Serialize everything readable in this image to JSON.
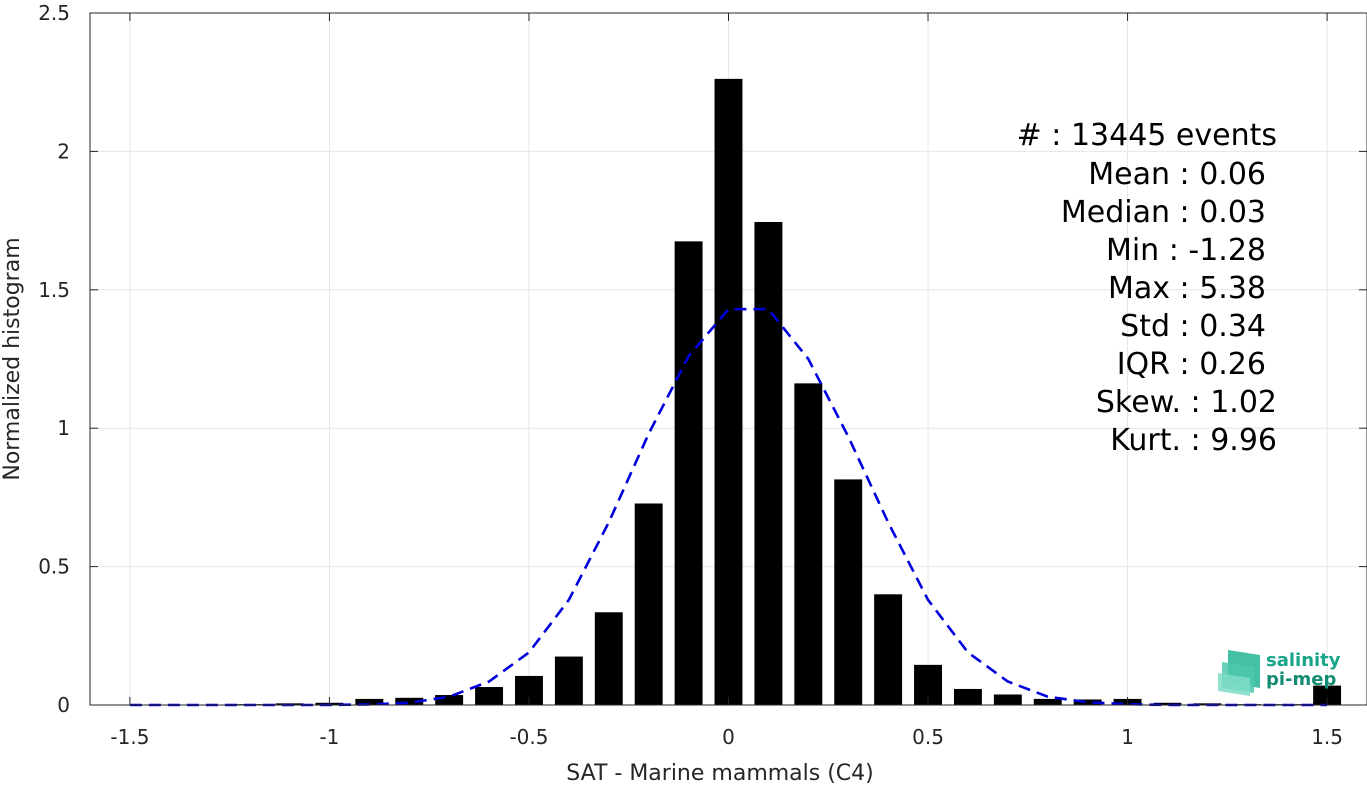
{
  "chart_data": {
    "type": "bar",
    "xlabel": "SAT - Marine mammals (C4)",
    "ylabel": "Normalized histogram",
    "xlim": [
      -1.6,
      1.6
    ],
    "ylim": [
      0,
      2.5
    ],
    "xticks": [
      -1.5,
      -1,
      -0.5,
      0,
      0.5,
      1,
      1.5
    ],
    "xtick_labels": [
      "-1.5",
      "-1",
      "-0.5",
      "0",
      "0.5",
      "1",
      "1.5"
    ],
    "yticks": [
      0,
      0.5,
      1,
      1.5,
      2,
      2.5
    ],
    "ytick_labels": [
      "0",
      "0.5",
      "1",
      "1.5",
      "2",
      "2.5"
    ],
    "grid": true,
    "bar_color": "#000000",
    "bars": {
      "x": [
        -1.5,
        -1.4,
        -1.3,
        -1.2,
        -1.1,
        -1.0,
        -0.9,
        -0.8,
        -0.7,
        -0.6,
        -0.5,
        -0.4,
        -0.3,
        -0.2,
        -0.1,
        0.0,
        0.1,
        0.2,
        0.3,
        0.4,
        0.5,
        0.6,
        0.7,
        0.8,
        0.9,
        1.0,
        1.1,
        1.2,
        1.3,
        1.4,
        1.5
      ],
      "values": [
        0.0,
        0.0,
        0.0,
        0.003,
        0.006,
        0.008,
        0.022,
        0.026,
        0.036,
        0.065,
        0.105,
        0.175,
        0.335,
        0.728,
        1.675,
        2.262,
        1.745,
        1.162,
        0.815,
        0.4,
        0.145,
        0.058,
        0.038,
        0.022,
        0.02,
        0.022,
        0.008,
        0.006,
        0.003,
        0.003,
        0.07
      ]
    },
    "fit_curve": {
      "color": "#0000dd",
      "style": "dashed",
      "x": [
        -1.5,
        -1.4,
        -1.3,
        -1.2,
        -1.1,
        -1.0,
        -0.9,
        -0.8,
        -0.7,
        -0.6,
        -0.5,
        -0.4,
        -0.3,
        -0.2,
        -0.1,
        0.0,
        0.1,
        0.2,
        0.3,
        0.4,
        0.5,
        0.6,
        0.7,
        0.8,
        0.9,
        1.0,
        1.1,
        1.2,
        1.3,
        1.4,
        1.5
      ],
      "values": [
        0.0,
        0.0,
        0.0,
        0.0,
        0.0,
        0.0,
        0.002,
        0.008,
        0.03,
        0.085,
        0.19,
        0.38,
        0.66,
        0.98,
        1.26,
        1.43,
        1.43,
        1.25,
        0.97,
        0.66,
        0.38,
        0.19,
        0.085,
        0.03,
        0.01,
        0.003,
        0.0,
        0.0,
        0.0,
        0.0,
        0.0
      ]
    },
    "stats": [
      "#  : 13445 events",
      "Mean : 0.06",
      "Median : 0.03",
      "Min : -1.28",
      "Max : 5.38",
      "Std : 0.34",
      "IQR : 0.26",
      "Skew. : 1.02",
      "Kurt. : 9.96"
    ]
  },
  "logo": {
    "line1": "salinity",
    "line2": "pi-mep",
    "color_primary": "#1aa58a",
    "color_secondary": "#138c73"
  }
}
